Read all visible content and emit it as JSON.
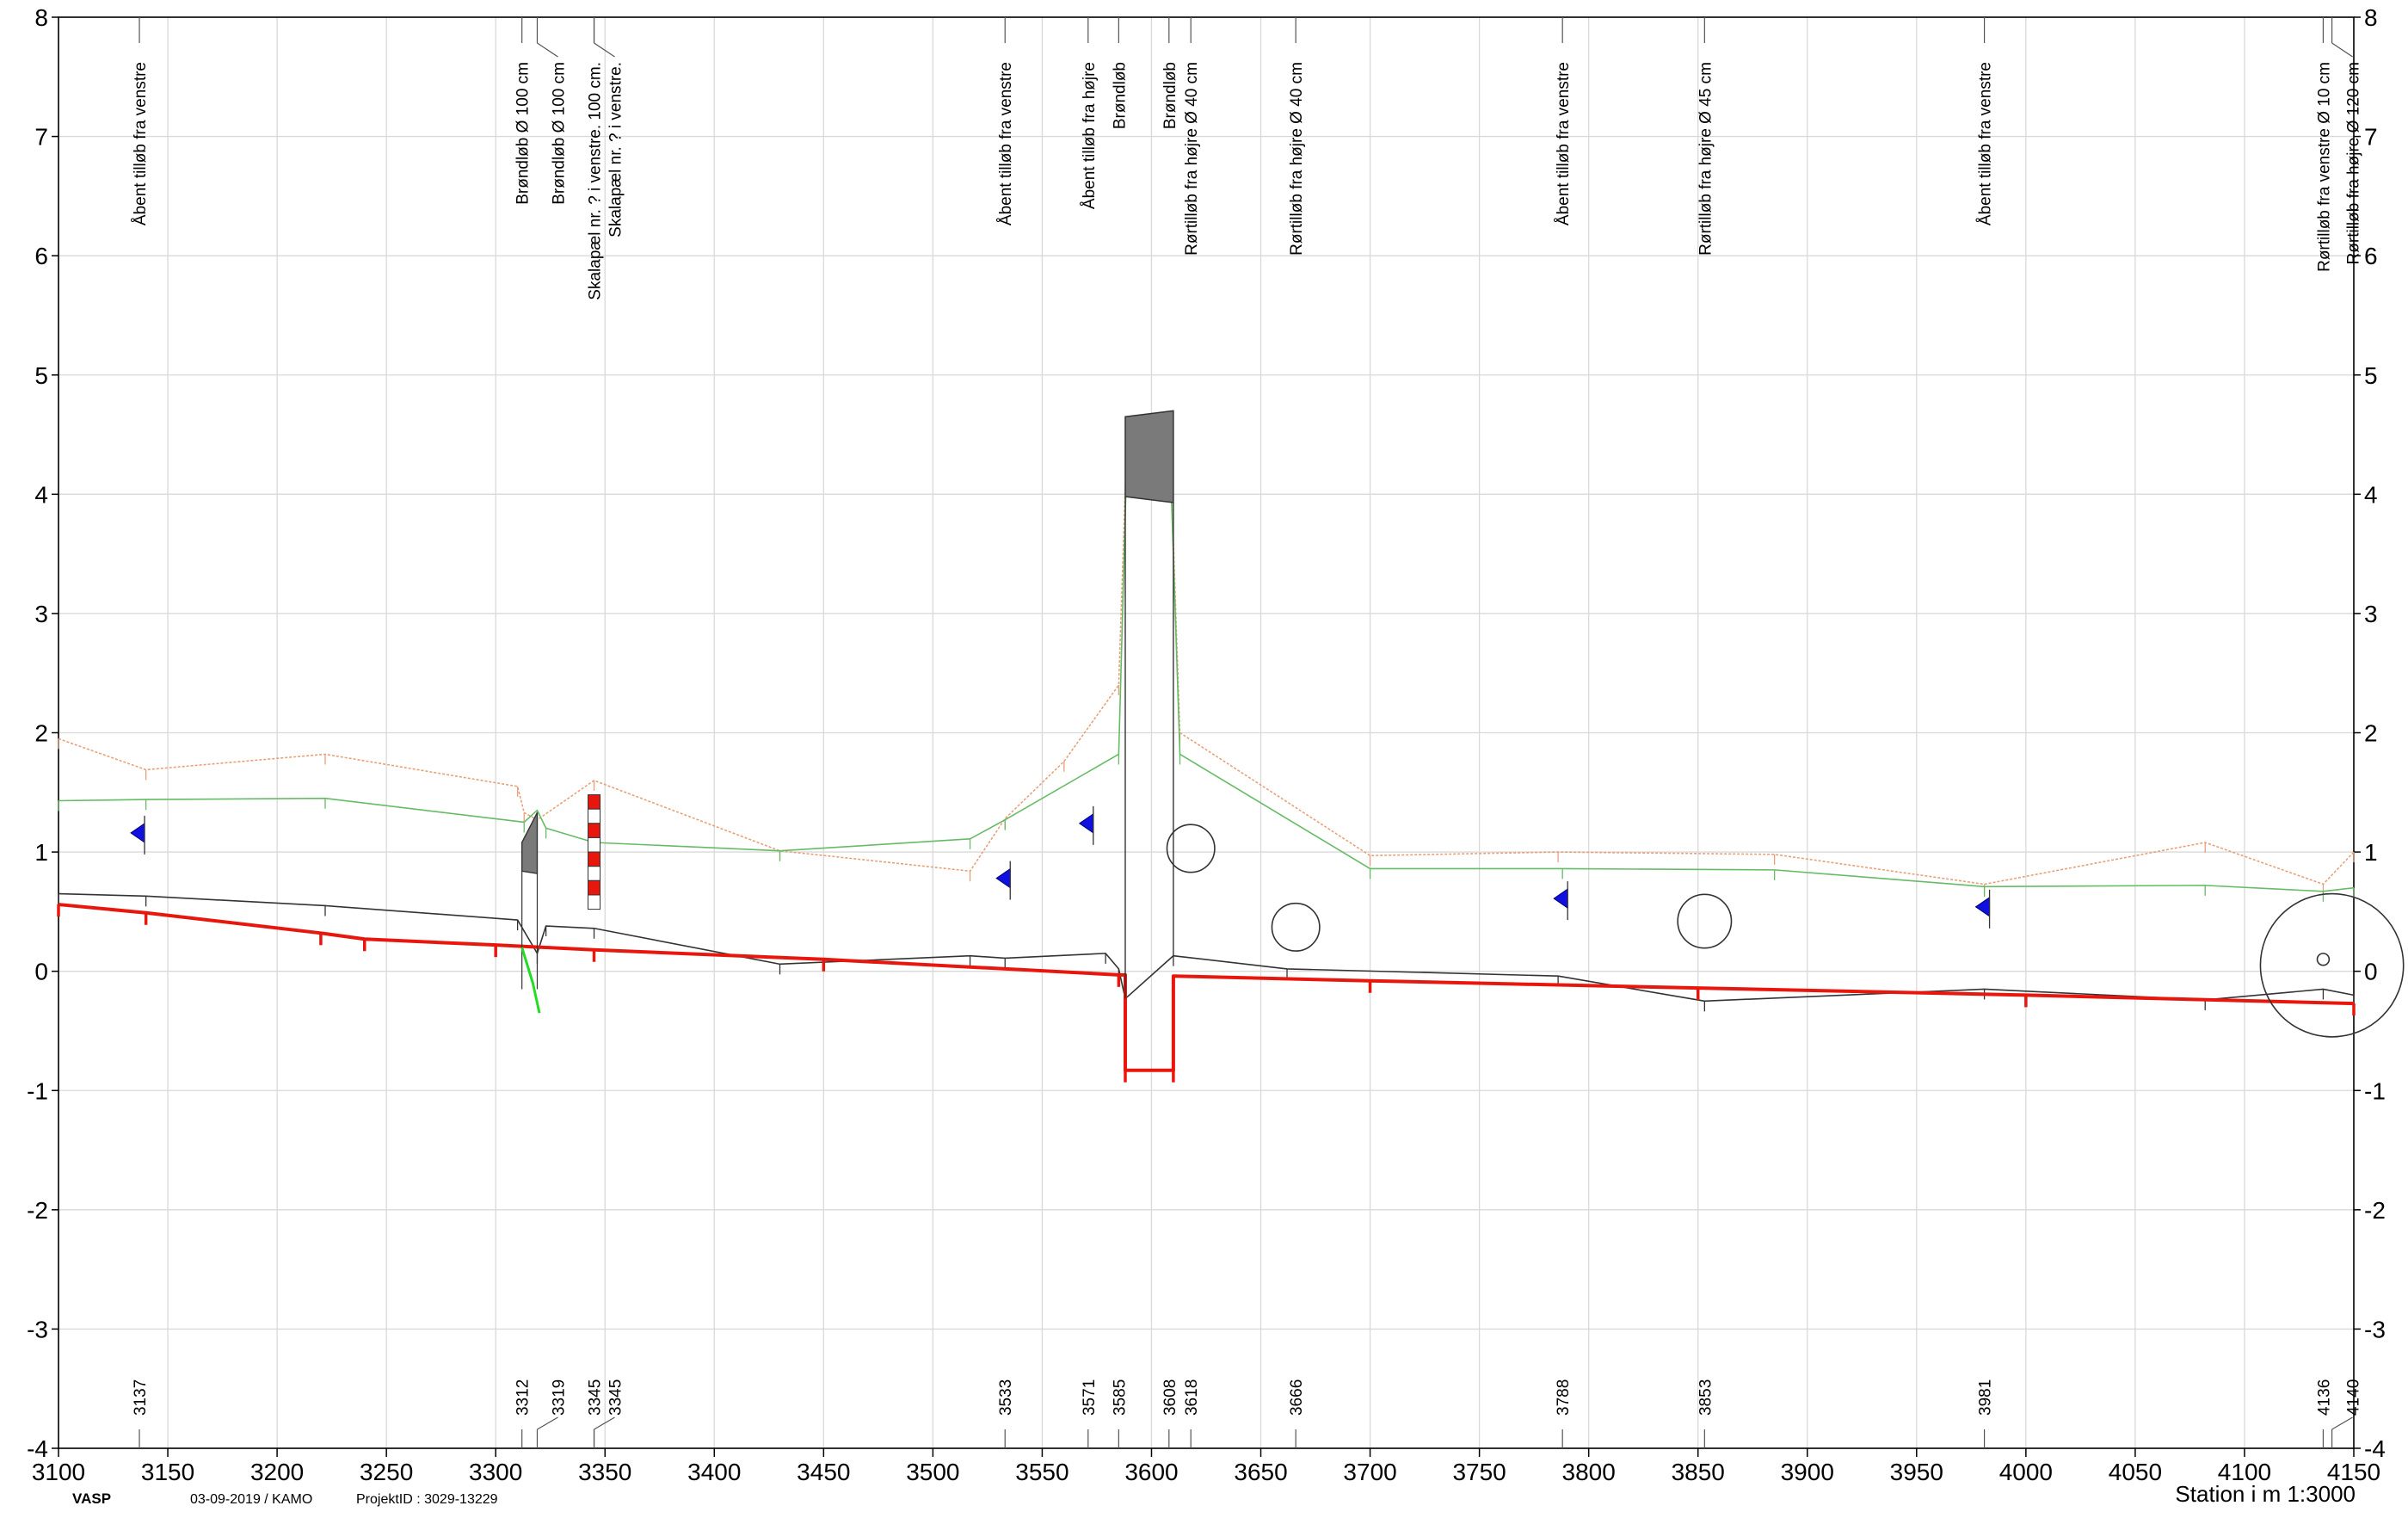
{
  "footer": {
    "logo": "VASP",
    "date": "03-09-2019 / KAMO",
    "project": "ProjektID : 3029-13229",
    "scale": "Station i m  1:3000"
  },
  "chart_data": {
    "type": "line",
    "title": "",
    "xlabel": "Station i m  1:3000",
    "ylabel": "",
    "xlim": [
      3100,
      4150
    ],
    "ylim": [
      -4,
      8
    ],
    "grid": true,
    "x_ticks": [
      3100,
      3150,
      3200,
      3250,
      3300,
      3350,
      3400,
      3450,
      3500,
      3550,
      3600,
      3650,
      3700,
      3750,
      3800,
      3850,
      3900,
      3950,
      4000,
      4050,
      4100,
      4150
    ],
    "y_ticks": [
      -4,
      -3,
      -2,
      -1,
      0,
      1,
      2,
      3,
      4,
      5,
      6,
      7,
      8
    ],
    "annotations": [
      {
        "x": 3137,
        "lines": [
          "Åbent tilløb fra venstre"
        ]
      },
      {
        "x": 3312,
        "lines": [
          "Brøndløb Ø 100 cm"
        ]
      },
      {
        "x": 3319,
        "lines": [
          "Brøndløb Ø 100 cm"
        ]
      },
      {
        "x": 3345,
        "lines": [
          "Skalapæl nr. ? i venstre. 100 cm."
        ]
      },
      {
        "x": 3345,
        "lines": [
          "Skalapæl nr. ? i venstre."
        ]
      },
      {
        "x": 3533,
        "lines": [
          "Åbent tilløb fra venstre"
        ]
      },
      {
        "x": 3571,
        "lines": [
          "Åbent tilløb fra højre"
        ]
      },
      {
        "x": 3585,
        "lines": [
          "Brøndløb"
        ]
      },
      {
        "x": 3608,
        "lines": [
          "Brøndløb"
        ]
      },
      {
        "x": 3618,
        "lines": [
          "Rørtilløb fra højre Ø 40 cm"
        ]
      },
      {
        "x": 3666,
        "lines": [
          "Rørtilløb fra højre Ø 40 cm"
        ]
      },
      {
        "x": 3788,
        "lines": [
          "Åbent tilløb fra venstre"
        ]
      },
      {
        "x": 3853,
        "lines": [
          "Rørtilløb fra højre Ø 45 cm"
        ]
      },
      {
        "x": 3981,
        "lines": [
          "Åbent tilløb fra venstre"
        ]
      },
      {
        "x": 4136,
        "lines": [
          "Rørtilløb fra venstre Ø 10 cm"
        ]
      },
      {
        "x": 4140,
        "lines": [
          "Rørtilløb fra højre Ø 120 cm"
        ]
      }
    ],
    "station_labels": [
      {
        "x": 3137,
        "label": "3137"
      },
      {
        "x": 3312,
        "label": "3312"
      },
      {
        "x": 3319,
        "label": "3319"
      },
      {
        "x": 3345,
        "label": "3345"
      },
      {
        "x": 3345,
        "label": "3345"
      },
      {
        "x": 3533,
        "label": "3533"
      },
      {
        "x": 3571,
        "label": "3571"
      },
      {
        "x": 3585,
        "label": "3585"
      },
      {
        "x": 3608,
        "label": "3608"
      },
      {
        "x": 3618,
        "label": "3618"
      },
      {
        "x": 3666,
        "label": "3666"
      },
      {
        "x": 3788,
        "label": "3788"
      },
      {
        "x": 3853,
        "label": "3853"
      },
      {
        "x": 3981,
        "label": "3981"
      },
      {
        "x": 4136,
        "label": "4136"
      },
      {
        "x": 4140,
        "label": "4140"
      }
    ],
    "series": [
      {
        "color": "#e8a07a",
        "dashed": true,
        "points": [
          [
            3100,
            1.95
          ],
          [
            3140,
            1.69
          ],
          [
            3222,
            1.82
          ],
          [
            3310,
            1.55
          ],
          [
            3313,
            1.33
          ],
          [
            3319,
            1.27
          ],
          [
            3345,
            1.6
          ],
          [
            3430,
            1.01
          ],
          [
            3517,
            0.84
          ],
          [
            3533,
            1.28
          ],
          [
            3560,
            1.76
          ],
          [
            3585,
            2.4
          ],
          [
            3589,
            4.6
          ],
          [
            3608,
            4.68
          ],
          [
            3613,
            2.0
          ],
          [
            3700,
            0.97
          ],
          [
            3786,
            1.0
          ],
          [
            3885,
            0.98
          ],
          [
            3981,
            0.73
          ],
          [
            4082,
            1.08
          ],
          [
            4136,
            0.73
          ],
          [
            4150,
            1.0
          ]
        ]
      },
      {
        "color": "#66bb66",
        "dashed": false,
        "points": [
          [
            3100,
            1.43
          ],
          [
            3140,
            1.44
          ],
          [
            3222,
            1.45
          ],
          [
            3313,
            1.25
          ],
          [
            3319,
            1.35
          ],
          [
            3323,
            1.2
          ],
          [
            3345,
            1.08
          ],
          [
            3430,
            1.01
          ],
          [
            3517,
            1.11
          ],
          [
            3533,
            1.27
          ],
          [
            3585,
            1.82
          ],
          [
            3589,
            4.5
          ],
          [
            3608,
            4.6
          ],
          [
            3613,
            1.82
          ],
          [
            3700,
            0.86
          ],
          [
            3788,
            0.86
          ],
          [
            3885,
            0.85
          ],
          [
            3981,
            0.71
          ],
          [
            4082,
            0.72
          ],
          [
            4136,
            0.67
          ],
          [
            4150,
            0.7
          ]
        ]
      },
      {
        "color": "#333333",
        "dashed": false,
        "points": [
          [
            3100,
            0.65
          ],
          [
            3140,
            0.63
          ],
          [
            3222,
            0.55
          ],
          [
            3310,
            0.43
          ],
          [
            3319,
            0.15
          ],
          [
            3323,
            0.38
          ],
          [
            3345,
            0.36
          ],
          [
            3430,
            0.06
          ],
          [
            3517,
            0.13
          ],
          [
            3533,
            0.11
          ],
          [
            3579,
            0.15
          ],
          [
            3585,
            0.02
          ],
          [
            3588,
            -0.23
          ],
          [
            3610,
            0.13
          ],
          [
            3662,
            0.02
          ],
          [
            3786,
            -0.04
          ],
          [
            3853,
            -0.25
          ],
          [
            3981,
            -0.15
          ],
          [
            4082,
            -0.24
          ],
          [
            4136,
            -0.15
          ],
          [
            4150,
            -0.2
          ]
        ]
      },
      {
        "color": "#e8170e",
        "dashed": false,
        "bold": true,
        "points": [
          [
            3100,
            0.56
          ],
          [
            3140,
            0.49
          ],
          [
            3220,
            0.32
          ],
          [
            3240,
            0.27
          ],
          [
            3300,
            0.22
          ],
          [
            3345,
            0.18
          ],
          [
            3450,
            0.1
          ],
          [
            3585,
            -0.03
          ],
          [
            3588,
            -0.03
          ],
          [
            3588,
            -0.83
          ],
          [
            3610,
            -0.83
          ],
          [
            3610,
            -0.04
          ],
          [
            3700,
            -0.08
          ],
          [
            3850,
            -0.14
          ],
          [
            4000,
            -0.2
          ],
          [
            4150,
            -0.27
          ]
        ]
      }
    ],
    "water_markers": [
      {
        "x": 3137,
        "y": 1.16
      },
      {
        "x": 3533,
        "y": 0.78
      },
      {
        "x": 3571,
        "y": 1.24
      },
      {
        "x": 3788,
        "y": 0.61
      },
      {
        "x": 3981,
        "y": 0.54
      }
    ],
    "pipe_circles": [
      {
        "x": 3618,
        "y": 1.03,
        "d": 0.4
      },
      {
        "x": 3666,
        "y": 0.37,
        "d": 0.4
      },
      {
        "x": 3853,
        "y": 0.42,
        "d": 0.45
      },
      {
        "x": 4140,
        "y": 0.05,
        "d": 1.2
      },
      {
        "x": 4136,
        "y": 0.1,
        "d": 0.1
      }
    ],
    "scale_pole": {
      "x": 3345,
      "y_bottom": 0.52,
      "y_top": 1.48
    },
    "bridge_box": {
      "x1": 3588,
      "x2": 3610,
      "y_top1": 4.65,
      "y_top2": 4.7,
      "y_bot1": 3.98,
      "y_bot2": 3.93
    }
  }
}
